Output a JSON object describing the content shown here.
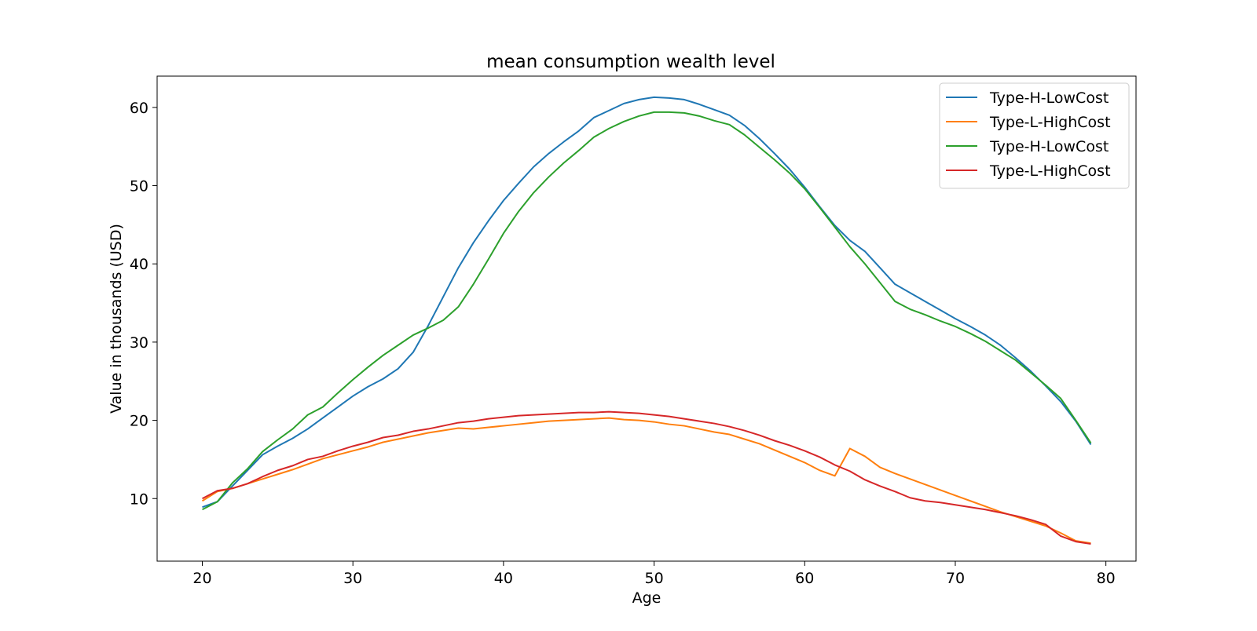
{
  "chart_data": {
    "type": "line",
    "title": "mean consumption wealth level",
    "xlabel": "Age",
    "ylabel": "Value in thousands (USD)",
    "xlim": [
      17,
      82
    ],
    "ylim": [
      2,
      64
    ],
    "xticks": [
      20,
      30,
      40,
      50,
      60,
      70,
      80
    ],
    "yticks": [
      10,
      20,
      30,
      40,
      50,
      60
    ],
    "grid": false,
    "legend_position": "top-right",
    "x": [
      20,
      21,
      22,
      23,
      24,
      25,
      26,
      27,
      28,
      29,
      30,
      31,
      32,
      33,
      34,
      35,
      36,
      37,
      38,
      39,
      40,
      41,
      42,
      43,
      44,
      45,
      46,
      47,
      48,
      49,
      50,
      51,
      52,
      53,
      54,
      55,
      56,
      57,
      58,
      59,
      60,
      61,
      62,
      63,
      64,
      65,
      66,
      67,
      68,
      69,
      70,
      71,
      72,
      73,
      74,
      75,
      76,
      77,
      78,
      79
    ],
    "series": [
      {
        "name": "Type-H-LowCost",
        "color": "#1f77b4",
        "values": [
          8.9,
          9.6,
          11.6,
          13.6,
          15.6,
          16.7,
          17.7,
          18.9,
          20.3,
          21.7,
          23.1,
          24.3,
          25.3,
          26.6,
          28.7,
          32.1,
          35.8,
          39.5,
          42.7,
          45.5,
          48.1,
          50.3,
          52.4,
          54.1,
          55.6,
          57.0,
          58.7,
          59.6,
          60.5,
          61.0,
          61.3,
          61.2,
          61.0,
          60.4,
          59.7,
          59.0,
          57.7,
          56.0,
          54.1,
          52.1,
          49.8,
          47.3,
          44.9,
          43.0,
          41.6,
          39.5,
          37.4,
          36.3,
          35.2,
          34.1,
          33.0,
          32.0,
          30.9,
          29.6,
          28.0,
          26.3,
          24.4,
          22.4,
          19.9,
          16.9
        ]
      },
      {
        "name": "Type-L-HighCost",
        "color": "#ff7f0e",
        "values": [
          9.7,
          10.9,
          11.3,
          11.9,
          12.5,
          13.1,
          13.7,
          14.4,
          15.1,
          15.6,
          16.1,
          16.6,
          17.2,
          17.6,
          18.0,
          18.4,
          18.7,
          19.0,
          18.9,
          19.1,
          19.3,
          19.5,
          19.7,
          19.9,
          20.0,
          20.1,
          20.2,
          20.3,
          20.1,
          20.0,
          19.8,
          19.5,
          19.3,
          18.9,
          18.5,
          18.2,
          17.6,
          17.0,
          16.2,
          15.4,
          14.6,
          13.6,
          12.9,
          16.4,
          15.4,
          14.0,
          13.2,
          12.5,
          11.8,
          11.1,
          10.4,
          9.7,
          9.0,
          8.3,
          7.7,
          7.1,
          6.5,
          5.6,
          4.6,
          4.3
        ]
      },
      {
        "name": "Type-H-LowCost",
        "color": "#2ca02c",
        "values": [
          8.6,
          9.6,
          12.0,
          13.8,
          16.0,
          17.5,
          18.9,
          20.7,
          21.7,
          23.5,
          25.2,
          26.8,
          28.3,
          29.6,
          30.9,
          31.8,
          32.8,
          34.5,
          37.4,
          40.6,
          43.9,
          46.7,
          49.1,
          51.1,
          52.9,
          54.5,
          56.2,
          57.3,
          58.2,
          58.9,
          59.4,
          59.4,
          59.3,
          58.9,
          58.3,
          57.8,
          56.5,
          54.9,
          53.3,
          51.6,
          49.6,
          47.2,
          44.7,
          42.2,
          40.0,
          37.6,
          35.2,
          34.2,
          33.5,
          32.7,
          32.0,
          31.1,
          30.1,
          28.9,
          27.7,
          26.1,
          24.5,
          22.8,
          20.0,
          17.1
        ]
      },
      {
        "name": "Type-L-HighCost",
        "color": "#d62728",
        "values": [
          10.0,
          11.0,
          11.3,
          11.9,
          12.8,
          13.6,
          14.2,
          15.0,
          15.4,
          16.1,
          16.7,
          17.2,
          17.8,
          18.1,
          18.6,
          18.9,
          19.3,
          19.7,
          19.9,
          20.2,
          20.4,
          20.6,
          20.7,
          20.8,
          20.9,
          21.0,
          21.0,
          21.1,
          21.0,
          20.9,
          20.7,
          20.5,
          20.2,
          19.9,
          19.6,
          19.2,
          18.7,
          18.1,
          17.4,
          16.8,
          16.1,
          15.3,
          14.3,
          13.5,
          12.4,
          11.6,
          10.9,
          10.1,
          9.7,
          9.5,
          9.2,
          8.9,
          8.6,
          8.2,
          7.8,
          7.3,
          6.7,
          5.2,
          4.5,
          4.2
        ]
      }
    ]
  }
}
